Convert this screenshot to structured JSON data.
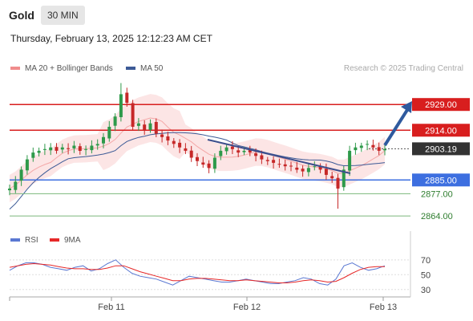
{
  "header": {
    "symbol": "Gold",
    "timeframe": "30 MIN"
  },
  "timestamp": "Thursday, February 13, 2025 12:12:23 AM CET",
  "legend_main": [
    {
      "label": "MA 20 + Bollinger Bands",
      "color": "#f08c8c"
    },
    {
      "label": "MA 50",
      "color": "#3c5a96"
    }
  ],
  "legend_rsi": [
    {
      "label": "RSI",
      "color": "#5a78d2"
    },
    {
      "label": "9MA",
      "color": "#e62828"
    }
  ],
  "credit": "Research © 2025 Trading Central",
  "chart_data": {
    "type": "candlestick",
    "price_axis": {
      "min": 2858,
      "max": 2945
    },
    "x_ticks": [
      "Feb 11",
      "Feb 12",
      "Feb 13"
    ],
    "levels": [
      {
        "value": 2929.0,
        "label": "2929.00",
        "kind": "resistance"
      },
      {
        "value": 2914.0,
        "label": "2914.00",
        "kind": "resistance"
      },
      {
        "value": 2903.19,
        "label": "2903.19",
        "kind": "last"
      },
      {
        "value": 2885.0,
        "label": "2885.00",
        "kind": "pivot"
      },
      {
        "value": 2877.0,
        "label": "2877.00",
        "kind": "support"
      },
      {
        "value": 2864.0,
        "label": "2864.00",
        "kind": "support"
      }
    ],
    "close_series": [
      2880,
      2884,
      2891,
      2897,
      2901,
      2902,
      2903,
      2904,
      2902,
      2904,
      2903,
      2905,
      2902,
      2903,
      2905,
      2906,
      2910,
      2916,
      2922,
      2935,
      2930,
      2916,
      2918,
      2914,
      2918,
      2912,
      2910,
      2908,
      2906,
      2904,
      2902,
      2898,
      2896,
      2894,
      2892,
      2898,
      2902,
      2904,
      2903,
      2901,
      2902,
      2901,
      2899,
      2897,
      2896,
      2895,
      2894,
      2893,
      2893,
      2891,
      2890,
      2892,
      2893,
      2891,
      2888,
      2886,
      2880,
      2891,
      2902,
      2904,
      2905,
      2906,
      2904,
      2902,
      2903
    ],
    "rsi": {
      "levels": [
        70,
        50,
        30
      ],
      "rsi_values": [
        56,
        62,
        66,
        66,
        64,
        60,
        58,
        56,
        60,
        62,
        55,
        58,
        65,
        70,
        60,
        52,
        48,
        46,
        44,
        40,
        36,
        42,
        48,
        46,
        44,
        42,
        40,
        40,
        42,
        44,
        42,
        40,
        38,
        38,
        40,
        42,
        46,
        44,
        38,
        36,
        44,
        62,
        66,
        60,
        56,
        58,
        62
      ],
      "ma9_values": [
        60,
        62,
        64,
        65,
        64,
        63,
        61,
        59,
        58,
        58,
        57,
        57,
        59,
        62,
        62,
        58,
        54,
        51,
        48,
        45,
        42,
        42,
        44,
        45,
        45,
        44,
        43,
        42,
        42,
        43,
        42,
        41,
        40,
        39,
        39,
        40,
        42,
        43,
        42,
        40,
        41,
        46,
        52,
        57,
        60,
        61,
        61
      ]
    }
  }
}
